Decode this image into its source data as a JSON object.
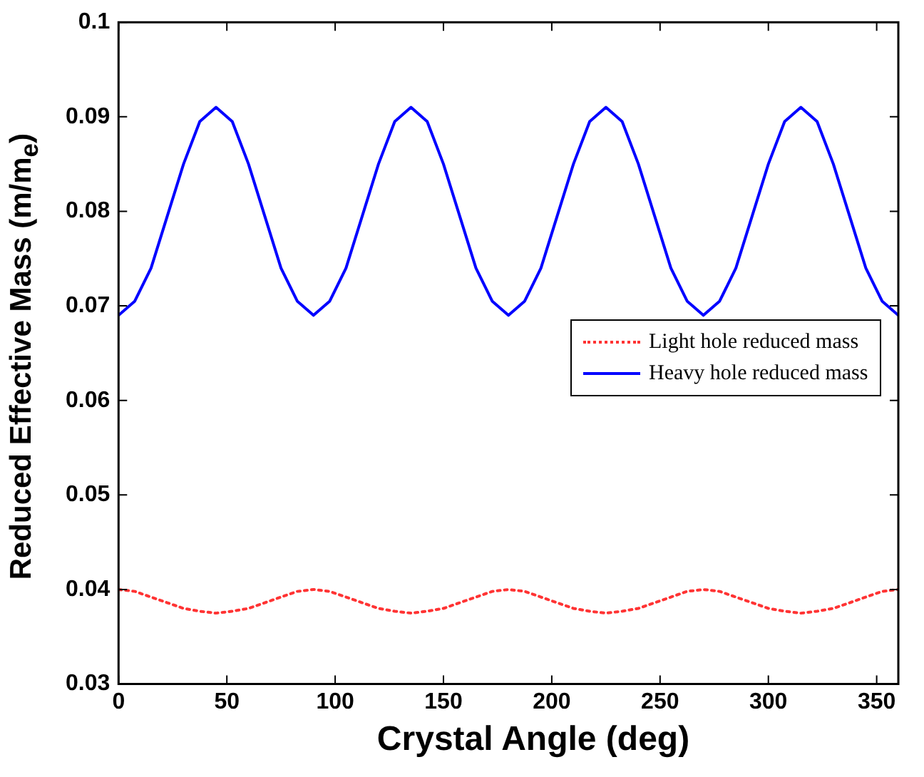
{
  "chart_data": {
    "type": "line",
    "xlabel": "Crystal Angle (deg)",
    "ylabel": "Reduced Effective Mass (m/m$_{e}$)",
    "x": [
      0,
      7.5,
      15,
      22.5,
      30,
      37.5,
      45,
      52.5,
      60,
      67.5,
      75,
      82.5,
      90,
      97.5,
      105,
      112.5,
      120,
      127.5,
      135,
      142.5,
      150,
      157.5,
      165,
      172.5,
      180,
      187.5,
      195,
      202.5,
      210,
      217.5,
      225,
      232.5,
      240,
      247.5,
      255,
      262.5,
      270,
      277.5,
      285,
      292.5,
      300,
      307.5,
      315,
      322.5,
      330,
      337.5,
      345,
      352.5,
      360
    ],
    "series": [
      {
        "name": "Light hole reduced mass",
        "color": "#ff3333",
        "line_style": "dotted",
        "values": [
          0.04,
          0.0398,
          0.0392,
          0.0386,
          0.038,
          0.0377,
          0.0375,
          0.0377,
          0.038,
          0.0386,
          0.0392,
          0.0398,
          0.04,
          0.0398,
          0.0392,
          0.0386,
          0.038,
          0.0377,
          0.0375,
          0.0377,
          0.038,
          0.0386,
          0.0392,
          0.0398,
          0.04,
          0.0398,
          0.0392,
          0.0386,
          0.038,
          0.0377,
          0.0375,
          0.0377,
          0.038,
          0.0386,
          0.0392,
          0.0398,
          0.04,
          0.0398,
          0.0392,
          0.0386,
          0.038,
          0.0377,
          0.0375,
          0.0377,
          0.038,
          0.0386,
          0.0392,
          0.0398,
          0.04
        ]
      },
      {
        "name": "Heavy hole reduced mass",
        "color": "#0000ff",
        "line_style": "solid",
        "values": [
          0.069,
          0.0705,
          0.074,
          0.0795,
          0.085,
          0.0895,
          0.091,
          0.0895,
          0.085,
          0.0795,
          0.074,
          0.0705,
          0.069,
          0.0705,
          0.074,
          0.0795,
          0.085,
          0.0895,
          0.091,
          0.0895,
          0.085,
          0.0795,
          0.074,
          0.0705,
          0.069,
          0.0705,
          0.074,
          0.0795,
          0.085,
          0.0895,
          0.091,
          0.0895,
          0.085,
          0.0795,
          0.074,
          0.0705,
          0.069,
          0.0705,
          0.074,
          0.0795,
          0.085,
          0.0895,
          0.091,
          0.0895,
          0.085,
          0.0795,
          0.074,
          0.0705,
          0.069
        ]
      }
    ],
    "xlim": [
      0,
      360
    ],
    "xticks": [
      0,
      50,
      100,
      150,
      200,
      250,
      300,
      350
    ],
    "ylim": [
      0.03,
      0.1
    ],
    "yticks": [
      0.03,
      0.04,
      0.05,
      0.06,
      0.07,
      0.08,
      0.09,
      0.1
    ],
    "grid": false,
    "legend": "right",
    "marker": "none"
  }
}
